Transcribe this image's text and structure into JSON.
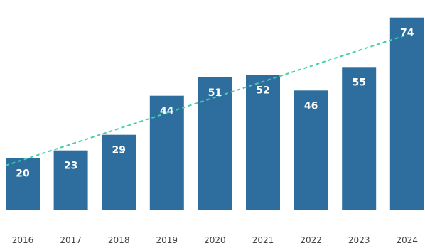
{
  "chart_data": {
    "type": "bar",
    "categories": [
      "2016",
      "2017",
      "2018",
      "2019",
      "2020",
      "2021",
      "2022",
      "2023",
      "2024"
    ],
    "values": [
      20,
      23,
      29,
      44,
      51,
      52,
      46,
      55,
      74
    ],
    "title": "",
    "xlabel": "",
    "ylabel": "",
    "ylim": [
      0,
      78
    ],
    "grid": false,
    "legend": "none",
    "data_labels": true,
    "trendline": {
      "type": "linear",
      "style": "dashed",
      "color": "#3fd1a8"
    },
    "colors": {
      "bar": "#2e6e9e",
      "bar_label": "#ffffff",
      "tick_label": "#444444"
    }
  }
}
